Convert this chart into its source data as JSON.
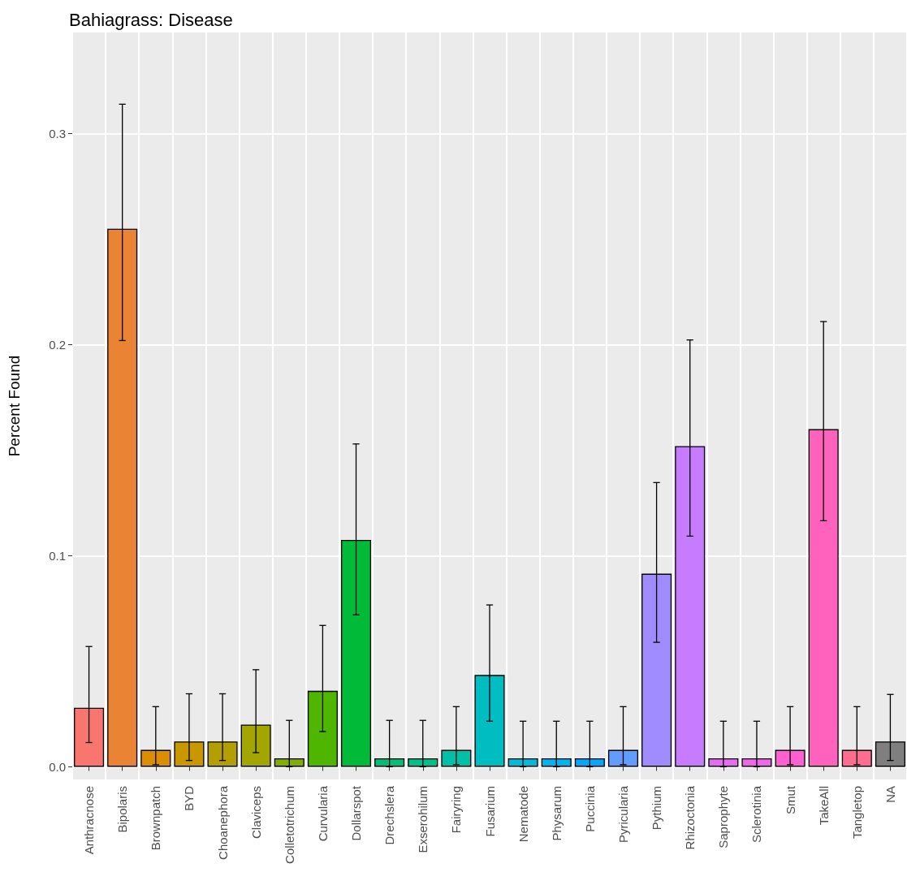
{
  "chart_data": {
    "type": "bar",
    "title": "Bahiagrass: Disease",
    "ylabel": "Percent Found",
    "categories": [
      "Anthracnose",
      "Bipolaris",
      "Brownpatch",
      "BYD",
      "Choanephora",
      "Claviceps",
      "Colletotrichum",
      "Curvularia",
      "Dollarspot",
      "Drechslera",
      "Exserohilum",
      "Fairyring",
      "Fusarium",
      "Nematode",
      "Physarum",
      "Puccinia",
      "Pyricularia",
      "Pythium",
      "Rhizoctonia",
      "Saprophyte",
      "Sclerotinia",
      "Smut",
      "TakeAll",
      "Tangletop",
      "NA"
    ],
    "values": [
      0.028,
      0.255,
      0.008,
      0.012,
      0.012,
      0.02,
      0.004,
      0.036,
      0.1075,
      0.004,
      0.004,
      0.008,
      0.0435,
      0.004,
      0.004,
      0.004,
      0.008,
      0.0915,
      0.152,
      0.004,
      0.004,
      0.008,
      0.16,
      0.008,
      0.012
    ],
    "errors": [
      [
        0.0115,
        0.057
      ],
      [
        0.202,
        0.314
      ],
      [
        0.001,
        0.0285
      ],
      [
        0.003,
        0.0346
      ],
      [
        0.003,
        0.0346
      ],
      [
        0.0067,
        0.046
      ],
      [
        0,
        0.022
      ],
      [
        0.0167,
        0.067
      ],
      [
        0.072,
        0.153
      ],
      [
        0,
        0.022
      ],
      [
        0,
        0.022
      ],
      [
        0.001,
        0.0285
      ],
      [
        0.0216,
        0.0767
      ],
      [
        0,
        0.0216
      ],
      [
        0,
        0.0216
      ],
      [
        0,
        0.0216
      ],
      [
        0.001,
        0.0285
      ],
      [
        0.059,
        0.1347
      ],
      [
        0.1093,
        0.2023
      ],
      [
        0,
        0.0216
      ],
      [
        0,
        0.0216
      ],
      [
        0.001,
        0.0285
      ],
      [
        0.1166,
        0.211
      ],
      [
        0.001,
        0.0285
      ],
      [
        0.003,
        0.0343
      ]
    ],
    "colors": [
      "#f8766d",
      "#eb8335",
      "#db8e00",
      "#c99800",
      "#b3a000",
      "#a3a500",
      "#85ad00",
      "#4fb600",
      "#00ba38",
      "#00bf7d",
      "#00c08b",
      "#00c1a7",
      "#00bdc2",
      "#00bbdb",
      "#00b4ef",
      "#00a9ff",
      "#619cff",
      "#a08cff",
      "#c77cff",
      "#e76bf3",
      "#f066ea",
      "#fd61d1",
      "#ff62bc",
      "#ff6c91",
      "#7f7f7f"
    ],
    "ylim": [
      -0.006,
      0.348
    ],
    "yticks": [
      {
        "value": 0,
        "label": "0.0"
      },
      0.1,
      0.2,
      0.3
    ],
    "grid": true
  }
}
